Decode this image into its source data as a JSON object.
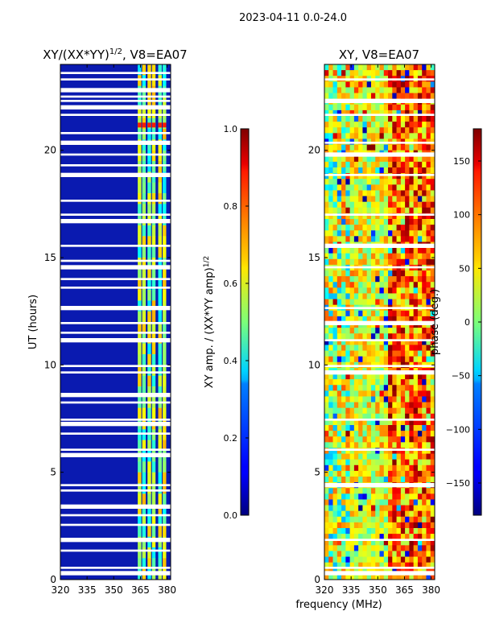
{
  "suptitle": "2023-04-11 0.0-24.0",
  "shared_xlabel": "frequency (MHz)",
  "chart_data": [
    {
      "type": "heatmap",
      "title_main": "XY/(XX*YY)",
      "title_sup": "1/2",
      "title_tail": ", V8=EA07",
      "ylabel": "UT (hours)",
      "xlim": [
        320,
        382
      ],
      "ylim": [
        0,
        24
      ],
      "xticks": [
        320,
        335,
        350,
        365,
        380
      ],
      "yticks": [
        0,
        5,
        10,
        15,
        20
      ],
      "colorbar": {
        "label_main": "XY amp. / (XX*YY amp)",
        "label_sup": "1/2",
        "range": [
          0.0,
          1.0
        ],
        "ticks": [
          "0.0",
          "0.2",
          "0.4",
          "0.6",
          "0.8",
          "1.0"
        ],
        "tick_values": [
          0.0,
          0.2,
          0.4,
          0.6,
          0.8,
          1.0
        ]
      },
      "bright_channel_columns_MHz": [
        [
          363.5,
          365.5
        ],
        [
          366,
          368
        ],
        [
          369,
          371
        ],
        [
          371.5,
          373.5
        ],
        [
          375,
          377
        ],
        [
          377.5,
          379.5
        ]
      ],
      "background_level": 0.05,
      "flagged_hours": [
        0.3,
        0.55,
        1.35,
        1.85,
        2.55,
        3.0,
        3.4,
        4.15,
        4.4,
        5.8,
        6.05,
        6.8,
        7.25,
        7.45,
        8.25,
        8.6,
        9.65,
        9.95,
        11.15,
        11.5,
        11.95,
        12.65,
        13.6,
        14.0,
        14.55,
        14.85,
        15.55,
        16.7,
        17.0,
        17.65,
        18.85,
        19.3,
        19.8,
        20.35,
        20.8,
        21.65,
        22.0,
        22.3,
        22.5,
        22.8,
        23.3,
        23.6
      ]
    },
    {
      "type": "heatmap",
      "title_main": "XY, V8=EA07",
      "xlim": [
        320,
        382
      ],
      "ylim": [
        0,
        24
      ],
      "xticks": [
        320,
        335,
        350,
        365,
        380
      ],
      "yticks": [
        0,
        5,
        10,
        15,
        20
      ],
      "colorbar": {
        "label_main": "phase (deg.)",
        "range": [
          -180,
          180
        ],
        "ticks": [
          "−150",
          "−100",
          "−50",
          "0",
          "50",
          "100",
          "150"
        ],
        "tick_values": [
          -150,
          -100,
          -50,
          0,
          50,
          100,
          150
        ]
      },
      "flagged_hours": [
        0.3,
        0.55,
        1.85,
        4.4,
        6.05,
        7.45,
        9.65,
        9.95,
        11.15,
        11.95,
        12.65,
        14.55,
        15.55,
        17.0,
        18.85,
        19.8,
        20.35,
        21.65,
        22.3,
        23.3
      ]
    }
  ]
}
